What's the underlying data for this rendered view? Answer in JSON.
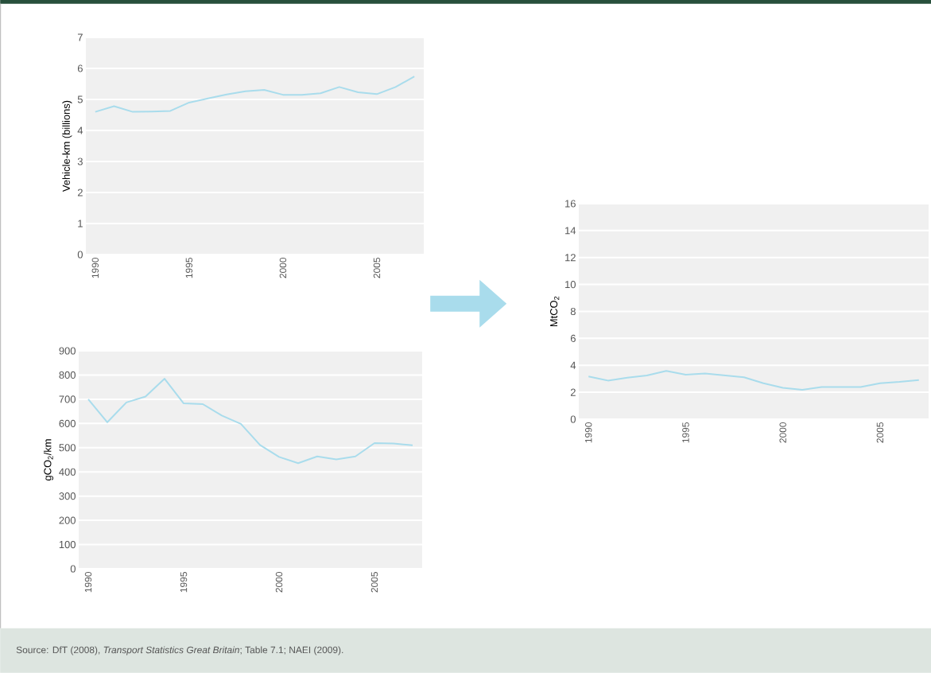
{
  "chart_data": [
    {
      "type": "line",
      "ylabel": "Vehicle-km (billions)",
      "x": [
        1990,
        1991,
        1992,
        1993,
        1994,
        1995,
        1996,
        1997,
        1998,
        1999,
        2000,
        2001,
        2002,
        2003,
        2004,
        2005,
        2006,
        2007
      ],
      "series": [
        {
          "color": "#a9dcec",
          "values": [
            4.6,
            4.78,
            4.6,
            4.61,
            4.63,
            4.9,
            5.03,
            5.16,
            5.26,
            5.31,
            5.15,
            5.15,
            5.2,
            5.4,
            5.23,
            5.17,
            5.4,
            5.74
          ]
        }
      ],
      "xlim": [
        1989.5,
        2007.5
      ],
      "ylim": [
        0,
        7
      ],
      "xticks": [
        1990,
        1995,
        2000,
        2005
      ],
      "yticks": [
        0,
        1,
        2,
        3,
        4,
        5,
        6,
        7
      ],
      "grid": "y"
    },
    {
      "type": "line",
      "ylabel": "gCO$_{2}$/km",
      "x": [
        1990,
        1991,
        1992,
        1993,
        1994,
        1995,
        1996,
        1997,
        1998,
        1999,
        2000,
        2001,
        2002,
        2003,
        2004,
        2005,
        2006,
        2007
      ],
      "series": [
        {
          "color": "#a9dcec",
          "values": [
            700,
            605,
            687,
            711,
            785,
            683,
            680,
            633,
            598,
            511,
            462,
            436,
            464,
            452,
            464,
            519,
            517,
            510
          ]
        }
      ],
      "xlim": [
        1989.5,
        2007.5
      ],
      "ylim": [
        0,
        900
      ],
      "xticks": [
        1990,
        1995,
        2000,
        2005
      ],
      "yticks": [
        0,
        100,
        200,
        300,
        400,
        500,
        600,
        700,
        800,
        900
      ],
      "grid": "y"
    },
    {
      "type": "line",
      "ylabel": "MtCO$_{2}$",
      "x": [
        1990,
        1991,
        1992,
        1993,
        1994,
        1995,
        1996,
        1997,
        1998,
        1999,
        2000,
        2001,
        2002,
        2003,
        2004,
        2005,
        2006,
        2007
      ],
      "series": [
        {
          "color": "#a9dcec",
          "values": [
            3.17,
            2.87,
            3.09,
            3.25,
            3.59,
            3.31,
            3.39,
            3.25,
            3.11,
            2.67,
            2.33,
            2.19,
            2.39,
            2.39,
            2.39,
            2.67,
            2.77,
            2.91
          ]
        }
      ],
      "xlim": [
        1989.5,
        2007.5
      ],
      "ylim": [
        0,
        16
      ],
      "xticks": [
        1990,
        1995,
        2000,
        2005
      ],
      "yticks": [
        0,
        2,
        4,
        6,
        8,
        10,
        12,
        14,
        16
      ],
      "grid": "y",
      "annotations": [
        "Source: DfT (2008), *Transport Statistics Great Britain*; Table 7.1; NAEI (2009)."
      ]
    }
  ]
}
